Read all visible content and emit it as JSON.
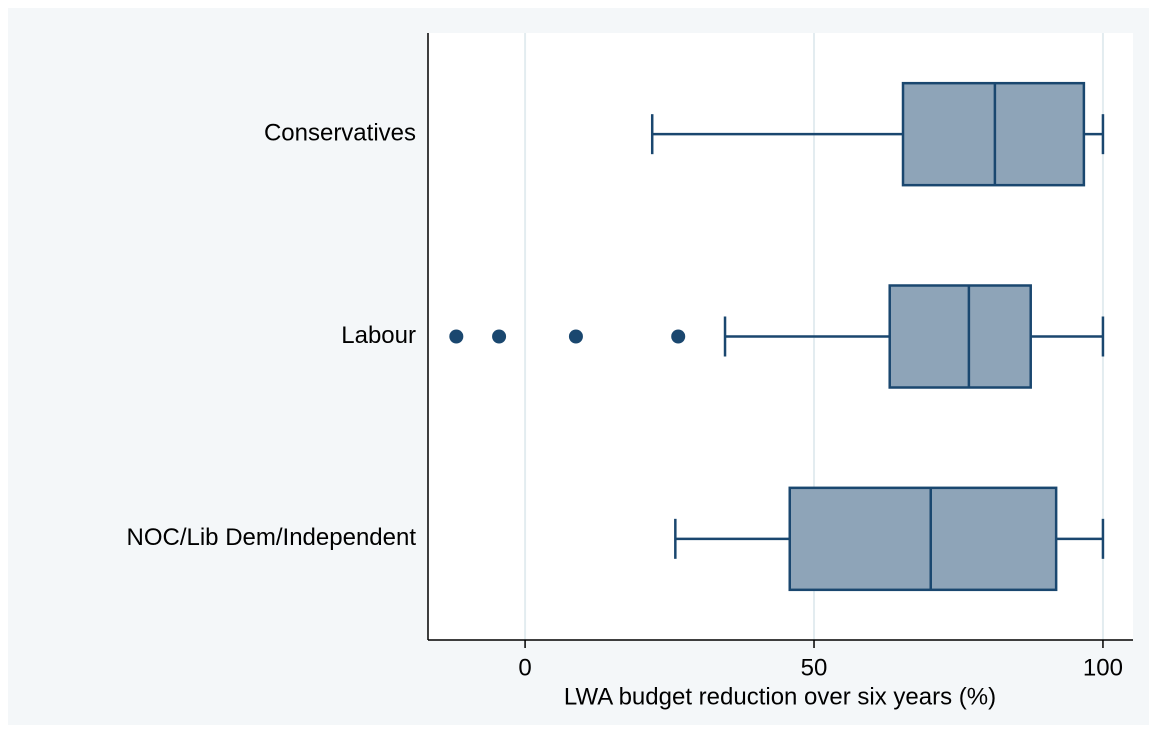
{
  "chart_data": {
    "type": "box",
    "orientation": "horizontal",
    "xlabel": "LWA budget reduction over six years (%)",
    "xlim": [
      -16.8,
      105.2
    ],
    "xticks": [
      0,
      50,
      100
    ],
    "grid": true,
    "box_color": "#8ea4b8",
    "line_color": "#1a476f",
    "categories": [
      "Conservatives",
      "Labour",
      "NOC/Lib Dem/Independent"
    ],
    "boxes": [
      {
        "whisker_low": 22,
        "q1": 65.4,
        "median": 81.3,
        "q3": 96.7,
        "whisker_high": 100,
        "outliers": []
      },
      {
        "whisker_low": 34.6,
        "q1": 63.1,
        "median": 76.8,
        "q3": 87.5,
        "whisker_high": 100,
        "outliers": [
          -11.9,
          -4.5,
          8.8,
          26.5
        ]
      },
      {
        "whisker_low": 26,
        "q1": 45.8,
        "median": 70.2,
        "q3": 91.9,
        "whisker_high": 100,
        "outliers": []
      }
    ]
  }
}
